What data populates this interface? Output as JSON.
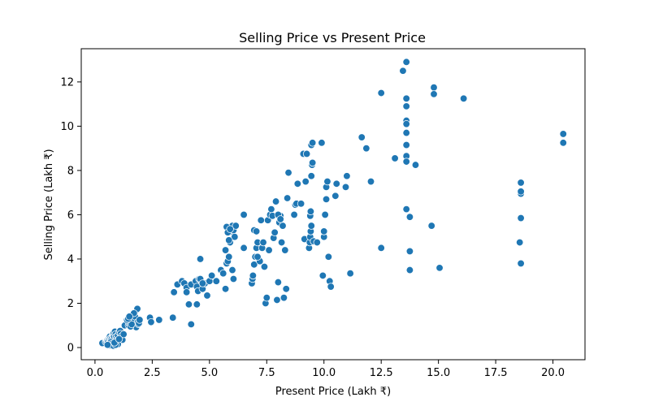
{
  "chart_data": {
    "type": "scatter",
    "title": "Selling Price vs Present Price",
    "xlabel": "Present Price (Lakh ₹)",
    "ylabel": "Selling Price (Lakh ₹)",
    "xlim": [
      -0.6,
      21.4
    ],
    "ylim": [
      -0.55,
      13.5
    ],
    "xticks": [
      0.0,
      2.5,
      5.0,
      7.5,
      10.0,
      12.5,
      15.0,
      17.5,
      20.0
    ],
    "xtick_labels": [
      "0.0",
      "2.5",
      "5.0",
      "7.5",
      "10.0",
      "12.5",
      "15.0",
      "17.5",
      "20.0"
    ],
    "yticks": [
      0,
      2,
      4,
      6,
      8,
      10,
      12
    ],
    "ytick_labels": [
      "0",
      "2",
      "4",
      "6",
      "8",
      "10",
      "12"
    ],
    "grid": false,
    "marker_color": "#1f77b4",
    "marker_edge_color": "#ffffff",
    "points": [
      [
        0.32,
        0.2
      ],
      [
        0.47,
        0.25
      ],
      [
        0.51,
        0.28
      ],
      [
        0.54,
        0.33
      ],
      [
        0.57,
        0.3
      ],
      [
        0.6,
        0.4
      ],
      [
        0.62,
        0.45
      ],
      [
        0.65,
        0.5
      ],
      [
        0.68,
        0.42
      ],
      [
        0.7,
        0.35
      ],
      [
        0.72,
        0.2
      ],
      [
        0.75,
        0.45
      ],
      [
        0.78,
        0.55
      ],
      [
        0.8,
        0.6
      ],
      [
        0.82,
        0.65
      ],
      [
        0.84,
        0.5
      ],
      [
        0.87,
        0.72
      ],
      [
        0.9,
        0.6
      ],
      [
        0.92,
        0.48
      ],
      [
        0.95,
        0.4
      ],
      [
        0.97,
        0.3
      ],
      [
        1.0,
        0.55
      ],
      [
        1.05,
        0.7
      ],
      [
        1.1,
        0.75
      ],
      [
        1.12,
        0.62
      ],
      [
        1.15,
        0.5
      ],
      [
        1.2,
        0.35
      ],
      [
        1.25,
        0.6
      ],
      [
        1.3,
        1.0
      ],
      [
        0.6,
        0.15
      ],
      [
        0.65,
        0.1
      ],
      [
        0.7,
        0.25
      ],
      [
        0.75,
        0.18
      ],
      [
        0.8,
        0.08
      ],
      [
        0.55,
        0.12
      ],
      [
        1.0,
        0.15
      ],
      [
        0.9,
        0.12
      ],
      [
        0.85,
        0.22
      ],
      [
        1.05,
        0.38
      ],
      [
        1.47,
        1.0
      ],
      [
        1.5,
        1.1
      ],
      [
        1.55,
        1.25
      ],
      [
        1.6,
        1.35
      ],
      [
        1.65,
        1.45
      ],
      [
        1.7,
        1.2
      ],
      [
        1.75,
        1.4
      ],
      [
        1.78,
        1.0
      ],
      [
        1.8,
        0.92
      ],
      [
        1.82,
        1.7
      ],
      [
        1.85,
        1.75
      ],
      [
        1.87,
        1.15
      ],
      [
        1.9,
        1.05
      ],
      [
        1.92,
        1.1
      ],
      [
        1.95,
        1.25
      ],
      [
        1.55,
        0.95
      ],
      [
        1.6,
        1.05
      ],
      [
        1.7,
        1.55
      ],
      [
        1.4,
        1.25
      ],
      [
        1.45,
        1.3
      ],
      [
        1.5,
        1.4
      ],
      [
        2.4,
        1.35
      ],
      [
        2.45,
        1.15
      ],
      [
        2.8,
        1.25
      ],
      [
        3.45,
        2.5
      ],
      [
        3.6,
        2.85
      ],
      [
        3.8,
        3.0
      ],
      [
        3.9,
        2.9
      ],
      [
        4.0,
        2.7
      ],
      [
        4.1,
        1.95
      ],
      [
        4.2,
        2.85
      ],
      [
        4.4,
        3.0
      ],
      [
        4.45,
        2.75
      ],
      [
        4.5,
        2.55
      ],
      [
        4.55,
        3.1
      ],
      [
        4.6,
        3.1
      ],
      [
        4.7,
        2.65
      ],
      [
        4.8,
        2.9
      ],
      [
        4.9,
        2.35
      ],
      [
        5.0,
        3.0
      ],
      [
        5.1,
        3.25
      ],
      [
        5.3,
        3.0
      ],
      [
        5.5,
        3.5
      ],
      [
        5.6,
        3.35
      ],
      [
        4.2,
        1.05
      ],
      [
        3.4,
        1.35
      ],
      [
        4.45,
        1.95
      ],
      [
        4.6,
        4.0
      ],
      [
        4.0,
        2.5
      ],
      [
        4.7,
        2.9
      ],
      [
        5.7,
        2.65
      ],
      [
        5.75,
        3.8
      ],
      [
        5.8,
        3.9
      ],
      [
        5.85,
        4.1
      ],
      [
        5.9,
        4.75
      ],
      [
        5.95,
        5.25
      ],
      [
        6.0,
        5.5
      ],
      [
        6.05,
        5.3
      ],
      [
        6.1,
        5.0
      ],
      [
        6.15,
        5.5
      ],
      [
        5.7,
        4.4
      ],
      [
        5.75,
        5.45
      ],
      [
        5.8,
        5.2
      ],
      [
        5.85,
        4.85
      ],
      [
        5.9,
        5.35
      ],
      [
        6.0,
        3.5
      ],
      [
        6.05,
        3.1
      ],
      [
        6.5,
        6.0
      ],
      [
        6.5,
        4.5
      ],
      [
        6.85,
        2.9
      ],
      [
        6.88,
        3.1
      ],
      [
        6.9,
        3.25
      ],
      [
        6.95,
        3.75
      ],
      [
        7.0,
        4.1
      ],
      [
        7.05,
        4.5
      ],
      [
        7.1,
        4.75
      ],
      [
        7.15,
        4.0
      ],
      [
        7.2,
        3.9
      ],
      [
        7.25,
        5.75
      ],
      [
        7.3,
        4.5
      ],
      [
        7.35,
        4.75
      ],
      [
        7.4,
        3.65
      ],
      [
        7.45,
        2.0
      ],
      [
        7.5,
        2.25
      ],
      [
        7.55,
        5.75
      ],
      [
        7.6,
        4.4
      ],
      [
        7.65,
        6.0
      ],
      [
        7.7,
        6.25
      ],
      [
        7.75,
        5.95
      ],
      [
        7.8,
        4.95
      ],
      [
        7.85,
        5.2
      ],
      [
        7.9,
        6.6
      ],
      [
        7.95,
        2.15
      ],
      [
        8.0,
        2.95
      ],
      [
        8.05,
        5.65
      ],
      [
        8.1,
        5.95
      ],
      [
        8.15,
        4.75
      ],
      [
        8.2,
        5.5
      ],
      [
        8.25,
        2.25
      ],
      [
        8.3,
        4.4
      ],
      [
        8.35,
        2.65
      ],
      [
        8.4,
        6.75
      ],
      [
        8.45,
        7.9
      ],
      [
        8.0,
        6.0
      ],
      [
        8.1,
        5.8
      ],
      [
        6.95,
        5.3
      ],
      [
        7.05,
        5.25
      ],
      [
        7.1,
        4.1
      ],
      [
        8.7,
        6.0
      ],
      [
        8.75,
        6.45
      ],
      [
        8.8,
        6.5
      ],
      [
        8.85,
        7.4
      ],
      [
        9.0,
        6.5
      ],
      [
        9.1,
        8.75
      ],
      [
        9.15,
        4.9
      ],
      [
        9.2,
        7.5
      ],
      [
        9.25,
        8.75
      ],
      [
        9.35,
        4.5
      ],
      [
        9.38,
        4.75
      ],
      [
        9.4,
        5.0
      ],
      [
        9.42,
        5.25
      ],
      [
        9.45,
        5.5
      ],
      [
        9.4,
        5.95
      ],
      [
        9.42,
        6.15
      ],
      [
        9.45,
        7.75
      ],
      [
        9.48,
        8.25
      ],
      [
        9.5,
        8.35
      ],
      [
        9.45,
        9.15
      ],
      [
        9.5,
        9.25
      ],
      [
        9.55,
        4.8
      ],
      [
        9.7,
        4.75
      ],
      [
        9.9,
        9.25
      ],
      [
        9.95,
        3.25
      ],
      [
        10.0,
        5.0
      ],
      [
        10.0,
        5.25
      ],
      [
        10.05,
        6.0
      ],
      [
        10.1,
        6.7
      ],
      [
        10.1,
        7.25
      ],
      [
        10.15,
        7.5
      ],
      [
        10.2,
        4.1
      ],
      [
        10.25,
        3.0
      ],
      [
        10.3,
        2.75
      ],
      [
        10.5,
        6.85
      ],
      [
        10.55,
        7.4
      ],
      [
        10.95,
        7.25
      ],
      [
        11.0,
        7.75
      ],
      [
        11.15,
        3.35
      ],
      [
        11.65,
        9.5
      ],
      [
        11.85,
        9.0
      ],
      [
        12.05,
        7.5
      ],
      [
        12.5,
        11.5
      ],
      [
        12.5,
        4.5
      ],
      [
        13.1,
        8.55
      ],
      [
        13.45,
        12.5
      ],
      [
        13.6,
        12.9
      ],
      [
        13.6,
        11.25
      ],
      [
        13.6,
        10.9
      ],
      [
        13.6,
        10.25
      ],
      [
        13.6,
        10.1
      ],
      [
        13.6,
        9.7
      ],
      [
        13.6,
        9.15
      ],
      [
        13.6,
        8.65
      ],
      [
        13.6,
        8.4
      ],
      [
        13.6,
        6.25
      ],
      [
        13.75,
        5.9
      ],
      [
        13.75,
        4.35
      ],
      [
        13.75,
        3.5
      ],
      [
        14.0,
        8.25
      ],
      [
        14.7,
        5.5
      ],
      [
        14.8,
        11.75
      ],
      [
        14.8,
        11.45
      ],
      [
        15.05,
        3.6
      ],
      [
        16.1,
        11.25
      ],
      [
        18.55,
        4.75
      ],
      [
        18.6,
        3.8
      ],
      [
        18.6,
        5.85
      ],
      [
        18.6,
        6.95
      ],
      [
        18.6,
        7.05
      ],
      [
        18.6,
        7.45
      ],
      [
        20.45,
        9.65
      ],
      [
        20.45,
        9.25
      ]
    ]
  }
}
